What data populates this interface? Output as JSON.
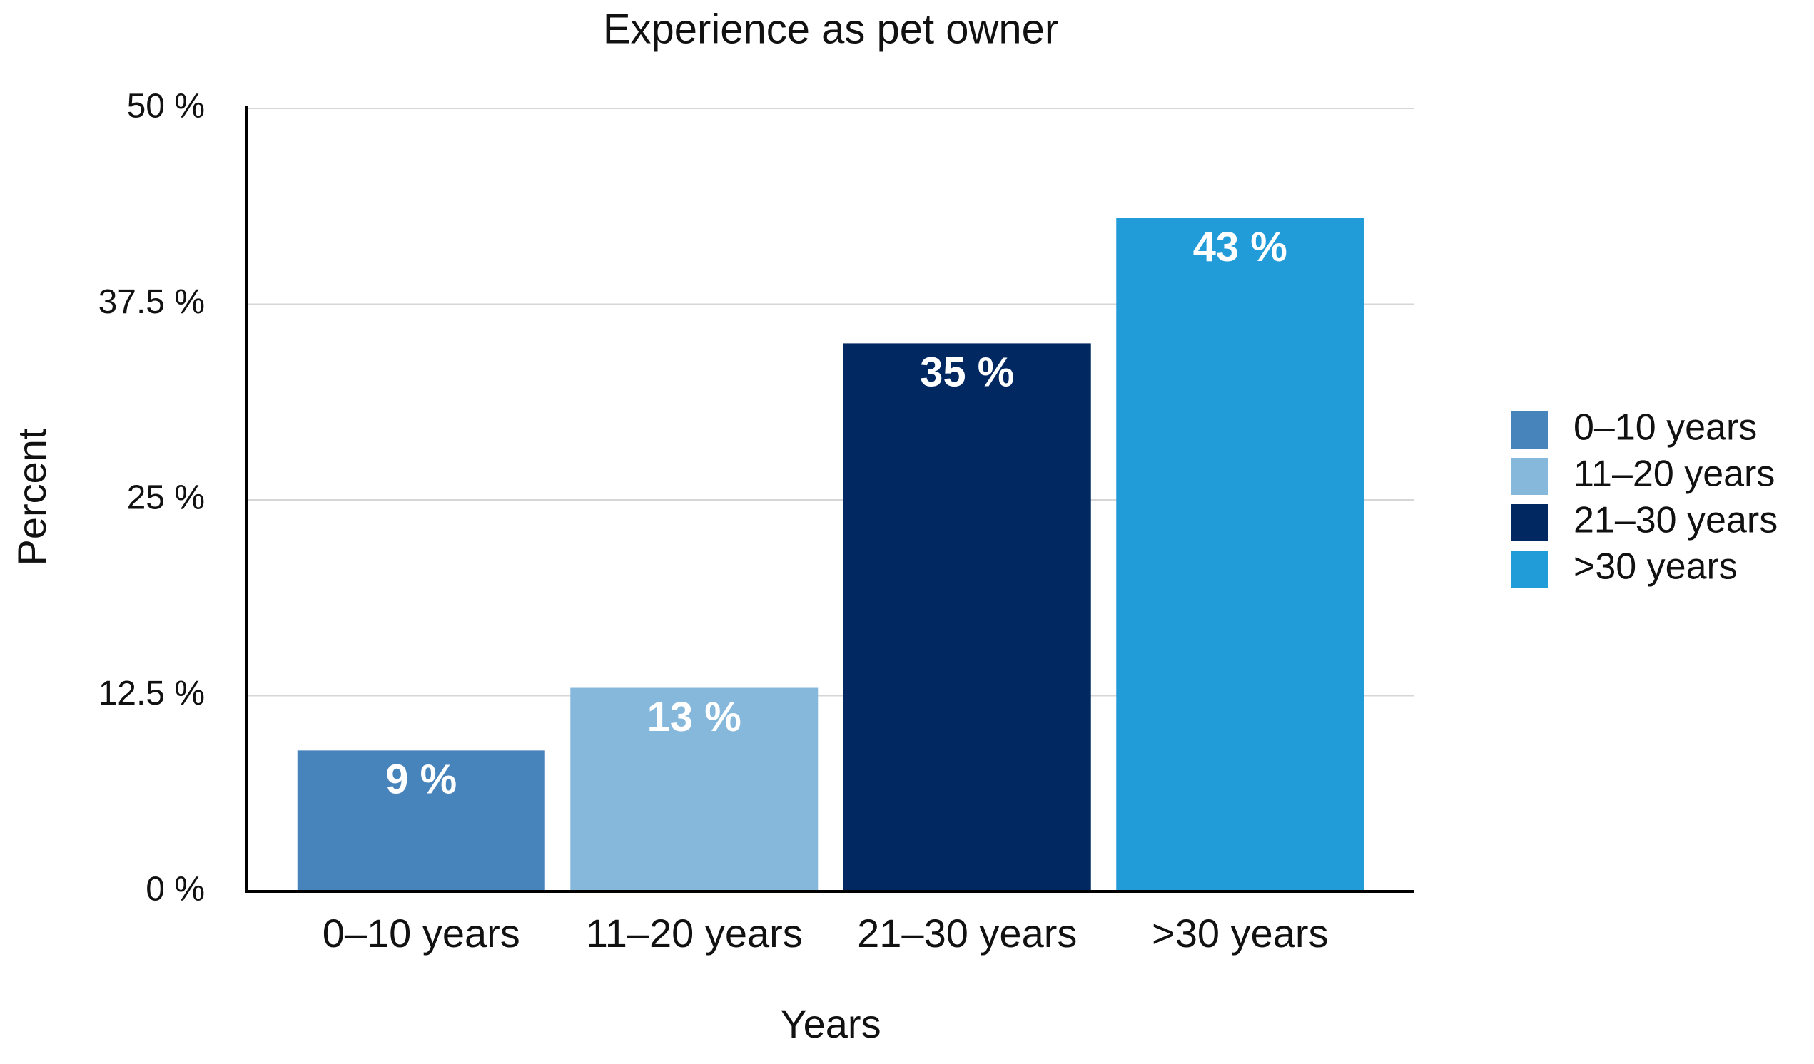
{
  "chart_data": {
    "type": "bar",
    "title": "Experience as pet owner",
    "x_label": "Years",
    "y_label": "Percent",
    "categories": [
      "0–10 years",
      "11–20 years",
      "21–30 years",
      ">30 years"
    ],
    "values": [
      9,
      13,
      35,
      43
    ],
    "value_labels": [
      "9 %",
      "13 %",
      "35 %",
      "43 %"
    ],
    "colors": [
      "#4784bb",
      "#86b8dc",
      "#022862",
      "#229cd8"
    ],
    "ylim": [
      0,
      50
    ],
    "yticks": [
      {
        "value": 0,
        "label": "0 %"
      },
      {
        "value": 12.5,
        "label": "12.5 %"
      },
      {
        "value": 25,
        "label": "25 %"
      },
      {
        "value": 37.5,
        "label": "37.5 %"
      },
      {
        "value": 50,
        "label": "50 %"
      }
    ],
    "grid": true,
    "legend": "right"
  }
}
